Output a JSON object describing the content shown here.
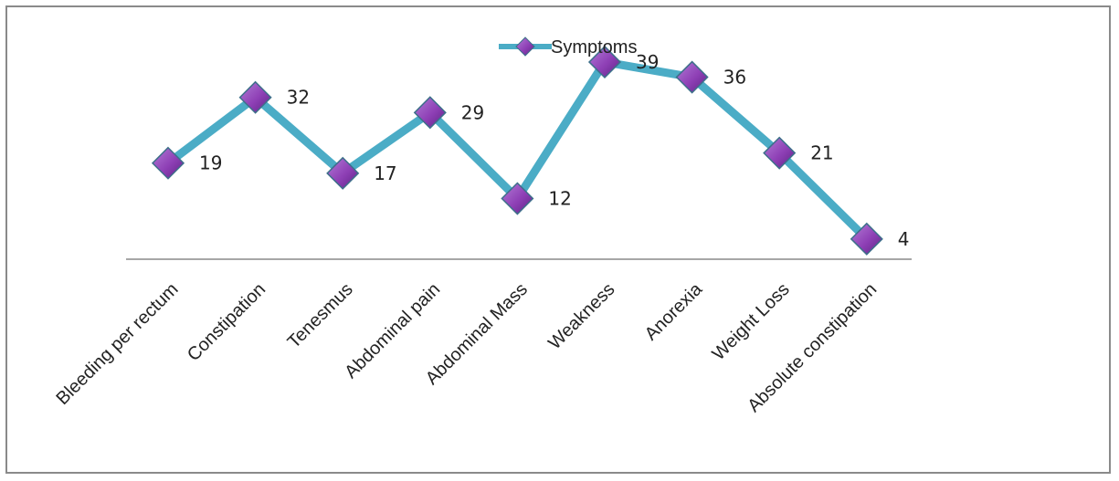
{
  "chart_data": {
    "type": "line",
    "categories": [
      "Bleeding per rectum",
      "Constipation",
      "Tenesmus",
      "Abdominal pain",
      "Abdominal Mass",
      "Weakness",
      "Anorexia",
      "Weight Loss",
      "Absolute constipation"
    ],
    "series": [
      {
        "name": "Symptoms",
        "values": [
          19,
          32,
          17,
          29,
          12,
          39,
          36,
          21,
          4
        ],
        "line_color": "#4bacc6",
        "marker_color": "#8e3fb5",
        "marker": "diamond"
      }
    ],
    "data_labels": [
      "19",
      "32",
      "17",
      "29",
      "12",
      "39",
      "36",
      "21",
      "4"
    ],
    "ylim": [
      0,
      40
    ],
    "grid": false,
    "legend": "top-center",
    "title": "",
    "xlabel": "",
    "ylabel": ""
  },
  "legend": {
    "label": "Symptoms"
  }
}
